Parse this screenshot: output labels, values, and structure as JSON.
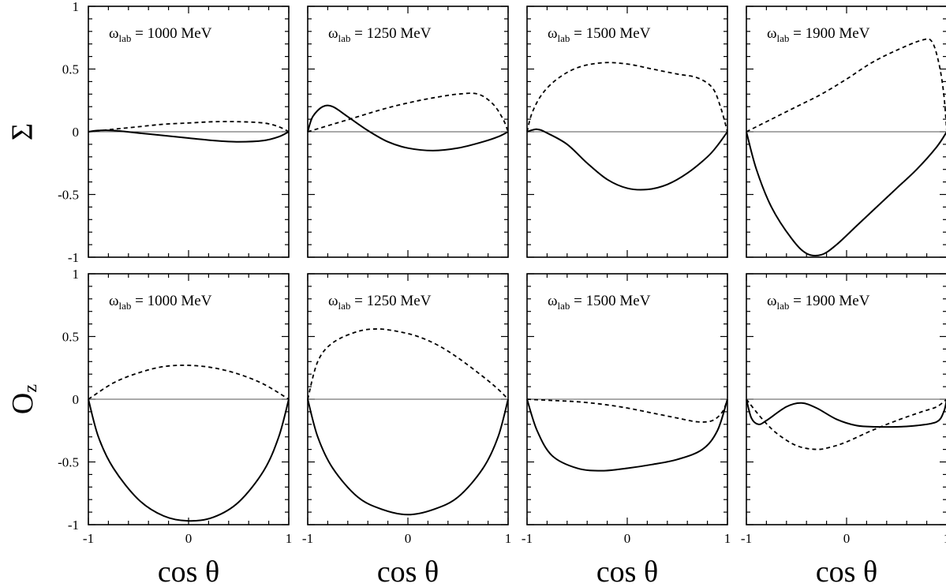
{
  "chart_data": [
    {
      "type": "line",
      "row": 0,
      "col": 0,
      "label_prefix": "ω",
      "label_sub": "lab",
      "label_value": "= 1000 MeV",
      "xlim": [
        -1,
        1
      ],
      "ylim": [
        -1,
        1
      ],
      "zero_line": true,
      "series": [
        {
          "style": "solid",
          "x": [
            -1,
            -0.9,
            -0.75,
            -0.5,
            -0.25,
            0,
            0.25,
            0.5,
            0.75,
            0.9,
            1
          ],
          "y": [
            0,
            0.01,
            0.01,
            -0.01,
            -0.03,
            -0.05,
            -0.07,
            -0.08,
            -0.07,
            -0.04,
            0
          ]
        },
        {
          "style": "dashed",
          "x": [
            -1,
            -0.75,
            -0.5,
            -0.25,
            0,
            0.25,
            0.5,
            0.75,
            0.9,
            1
          ],
          "y": [
            0,
            0.02,
            0.04,
            0.06,
            0.07,
            0.08,
            0.08,
            0.07,
            0.04,
            0
          ]
        }
      ]
    },
    {
      "type": "line",
      "row": 0,
      "col": 1,
      "label_prefix": "ω",
      "label_sub": "lab",
      "label_value": "= 1250 MeV",
      "xlim": [
        -1,
        1
      ],
      "ylim": [
        -1,
        1
      ],
      "zero_line": true,
      "series": [
        {
          "style": "solid",
          "x": [
            -1,
            -0.95,
            -0.85,
            -0.75,
            -0.6,
            -0.4,
            -0.2,
            0,
            0.25,
            0.5,
            0.75,
            0.9,
            1
          ],
          "y": [
            0,
            0.12,
            0.2,
            0.2,
            0.12,
            0.01,
            -0.08,
            -0.13,
            -0.15,
            -0.13,
            -0.08,
            -0.04,
            0
          ]
        },
        {
          "style": "dashed",
          "x": [
            -1,
            -0.75,
            -0.5,
            -0.25,
            0,
            0.25,
            0.5,
            0.7,
            0.85,
            0.95,
            1
          ],
          "y": [
            0,
            0.06,
            0.12,
            0.18,
            0.23,
            0.27,
            0.3,
            0.3,
            0.22,
            0.1,
            0
          ]
        }
      ]
    },
    {
      "type": "line",
      "row": 0,
      "col": 2,
      "label_prefix": "ω",
      "label_sub": "lab",
      "label_value": "= 1500 MeV",
      "xlim": [
        -1,
        1
      ],
      "ylim": [
        -1,
        1
      ],
      "zero_line": true,
      "series": [
        {
          "style": "solid",
          "x": [
            -1,
            -0.9,
            -0.8,
            -0.6,
            -0.4,
            -0.2,
            0,
            0.2,
            0.4,
            0.6,
            0.8,
            0.9,
            1
          ],
          "y": [
            0,
            0.02,
            -0.01,
            -0.1,
            -0.25,
            -0.38,
            -0.45,
            -0.46,
            -0.42,
            -0.33,
            -0.2,
            -0.11,
            0
          ]
        },
        {
          "style": "dashed",
          "x": [
            -1,
            -0.95,
            -0.85,
            -0.7,
            -0.5,
            -0.25,
            0,
            0.25,
            0.5,
            0.7,
            0.85,
            0.93,
            1
          ],
          "y": [
            0,
            0.15,
            0.3,
            0.42,
            0.51,
            0.55,
            0.54,
            0.5,
            0.46,
            0.43,
            0.35,
            0.2,
            0
          ]
        }
      ]
    },
    {
      "type": "line",
      "row": 0,
      "col": 3,
      "label_prefix": "ω",
      "label_sub": "lab",
      "label_value": "= 1900 MeV",
      "xlim": [
        -1,
        1
      ],
      "ylim": [
        -1,
        1
      ],
      "zero_line": true,
      "series": [
        {
          "style": "solid",
          "x": [
            -1,
            -0.9,
            -0.75,
            -0.55,
            -0.4,
            -0.25,
            -0.1,
            0.1,
            0.3,
            0.5,
            0.7,
            0.9,
            1
          ],
          "y": [
            0,
            -0.3,
            -0.6,
            -0.85,
            -0.97,
            -0.98,
            -0.9,
            -0.75,
            -0.6,
            -0.45,
            -0.3,
            -0.12,
            0
          ]
        },
        {
          "style": "dashed",
          "x": [
            -1,
            -0.75,
            -0.5,
            -0.25,
            0,
            0.25,
            0.5,
            0.75,
            0.85,
            0.92,
            0.97,
            1
          ],
          "y": [
            0,
            0.1,
            0.2,
            0.3,
            0.42,
            0.55,
            0.65,
            0.73,
            0.72,
            0.55,
            0.3,
            0
          ]
        }
      ]
    },
    {
      "type": "line",
      "row": 1,
      "col": 0,
      "label_prefix": "ω",
      "label_sub": "lab",
      "label_value": "= 1000 MeV",
      "xlim": [
        -1,
        1
      ],
      "ylim": [
        -1,
        1
      ],
      "zero_line": true,
      "series": [
        {
          "style": "solid",
          "x": [
            -1,
            -0.9,
            -0.75,
            -0.5,
            -0.25,
            0,
            0.25,
            0.5,
            0.75,
            0.9,
            1
          ],
          "y": [
            0,
            -0.3,
            -0.55,
            -0.8,
            -0.93,
            -0.97,
            -0.94,
            -0.82,
            -0.57,
            -0.3,
            0
          ]
        },
        {
          "style": "dashed",
          "x": [
            -1,
            -0.75,
            -0.5,
            -0.25,
            0,
            0.25,
            0.5,
            0.75,
            1
          ],
          "y": [
            0,
            0.13,
            0.21,
            0.26,
            0.27,
            0.25,
            0.2,
            0.12,
            0
          ]
        }
      ]
    },
    {
      "type": "line",
      "row": 1,
      "col": 1,
      "label_prefix": "ω",
      "label_sub": "lab",
      "label_value": "= 1250 MeV",
      "xlim": [
        -1,
        1
      ],
      "ylim": [
        -1,
        1
      ],
      "zero_line": true,
      "series": [
        {
          "style": "solid",
          "x": [
            -1,
            -0.9,
            -0.75,
            -0.5,
            -0.25,
            0,
            0.25,
            0.5,
            0.75,
            0.9,
            1
          ],
          "y": [
            0,
            -0.3,
            -0.55,
            -0.78,
            -0.88,
            -0.92,
            -0.88,
            -0.78,
            -0.55,
            -0.3,
            0
          ]
        },
        {
          "style": "dashed",
          "x": [
            -1,
            -0.9,
            -0.75,
            -0.5,
            -0.3,
            -0.1,
            0.1,
            0.3,
            0.5,
            0.75,
            0.9,
            1
          ],
          "y": [
            0,
            0.3,
            0.45,
            0.54,
            0.56,
            0.54,
            0.5,
            0.43,
            0.33,
            0.18,
            0.08,
            0
          ]
        }
      ]
    },
    {
      "type": "line",
      "row": 1,
      "col": 2,
      "label_prefix": "ω",
      "label_sub": "lab",
      "label_value": "= 1500 MeV",
      "xlim": [
        -1,
        1
      ],
      "ylim": [
        -1,
        1
      ],
      "zero_line": true,
      "series": [
        {
          "style": "solid",
          "x": [
            -1,
            -0.9,
            -0.75,
            -0.5,
            -0.25,
            0,
            0.25,
            0.5,
            0.75,
            0.9,
            1
          ],
          "y": [
            0,
            -0.25,
            -0.45,
            -0.55,
            -0.57,
            -0.55,
            -0.52,
            -0.48,
            -0.4,
            -0.25,
            0
          ]
        },
        {
          "style": "dashed",
          "x": [
            -1,
            -0.75,
            -0.5,
            -0.25,
            0,
            0.25,
            0.5,
            0.7,
            0.85,
            0.95,
            1
          ],
          "y": [
            0,
            -0.01,
            -0.02,
            -0.04,
            -0.07,
            -0.11,
            -0.15,
            -0.18,
            -0.17,
            -0.1,
            0
          ]
        }
      ]
    },
    {
      "type": "line",
      "row": 1,
      "col": 3,
      "label_prefix": "ω",
      "label_sub": "lab",
      "label_value": "= 1900 MeV",
      "xlim": [
        -1,
        1
      ],
      "ylim": [
        -1,
        1
      ],
      "zero_line": true,
      "series": [
        {
          "style": "solid",
          "x": [
            -1,
            -0.95,
            -0.88,
            -0.8,
            -0.6,
            -0.45,
            -0.3,
            -0.1,
            0.1,
            0.3,
            0.5,
            0.7,
            0.9,
            0.97,
            1
          ],
          "y": [
            0,
            -0.15,
            -0.2,
            -0.17,
            -0.06,
            -0.03,
            -0.07,
            -0.16,
            -0.21,
            -0.22,
            -0.22,
            -0.21,
            -0.18,
            -0.1,
            0
          ]
        },
        {
          "style": "dashed",
          "x": [
            -1,
            -0.85,
            -0.7,
            -0.5,
            -0.3,
            -0.15,
            0,
            0.25,
            0.5,
            0.75,
            0.9,
            1
          ],
          "y": [
            0,
            -0.15,
            -0.27,
            -0.37,
            -0.4,
            -0.38,
            -0.34,
            -0.25,
            -0.17,
            -0.1,
            -0.06,
            0
          ]
        }
      ]
    }
  ],
  "axes": {
    "y_title_row0": "Σ",
    "y_title_row1_main": "O",
    "y_title_row1_sub": "z",
    "x_title": "cos θ",
    "y_ticks": [
      -1,
      -0.5,
      0,
      0.5,
      1
    ],
    "y_tick_labels": [
      "-1",
      "-0.5",
      "0",
      "0.5",
      "1"
    ],
    "x_tick_labels": [
      "-1",
      "0",
      "1"
    ]
  }
}
